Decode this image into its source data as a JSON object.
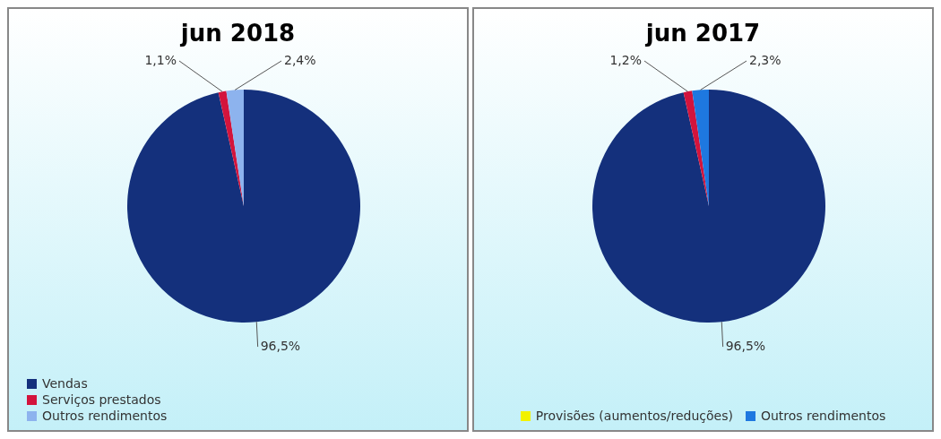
{
  "chart_data": [
    {
      "type": "pie",
      "title": "jun 2018",
      "categories": [
        "Vendas",
        "Serviços prestados",
        "Outros rendimentos"
      ],
      "values": [
        96.5,
        1.1,
        2.4
      ],
      "colors": [
        "#14307c",
        "#d3143c",
        "#8db3ee"
      ],
      "value_labels": [
        "96,5%",
        "1,1%",
        "2,4%"
      ],
      "legend": "bottom left"
    },
    {
      "type": "pie",
      "title": "jun 2017",
      "categories": [
        null,
        null,
        "Provisões (aumentos/reduções)",
        "Outros rendimentos"
      ],
      "values": [
        96.5,
        1.2,
        0,
        2.3
      ],
      "colors": [
        "#14307c",
        "#d3143c",
        "#f2f200",
        "#1e78e0"
      ],
      "value_labels": [
        "96,5%",
        "1,2%",
        null,
        "2,3%"
      ],
      "legend": "bottom"
    }
  ]
}
